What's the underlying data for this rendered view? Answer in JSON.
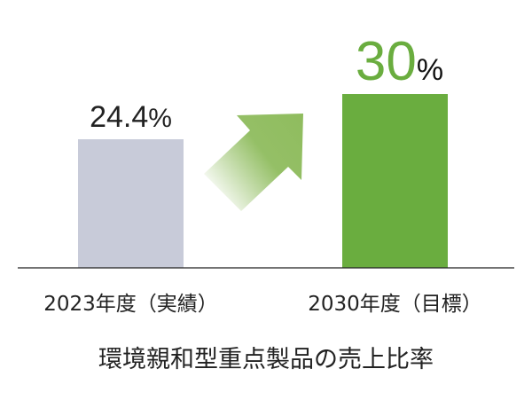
{
  "chart_data": {
    "type": "bar",
    "title": "環境親和型重点製品の売上比率",
    "categories": [
      "2023年度（実績）",
      "2030年度（目標）"
    ],
    "values": [
      24.4,
      30
    ],
    "data_labels": [
      {
        "number": "24.4",
        "unit": "%"
      },
      {
        "number": "30",
        "unit": "%"
      }
    ],
    "colors": [
      "#c8cbd9",
      "#6aad3f"
    ],
    "label_colors": [
      "#222222",
      "#6aad3f"
    ],
    "arrow_color": "#8fbc5e",
    "grid": false,
    "axes_visible": false
  }
}
